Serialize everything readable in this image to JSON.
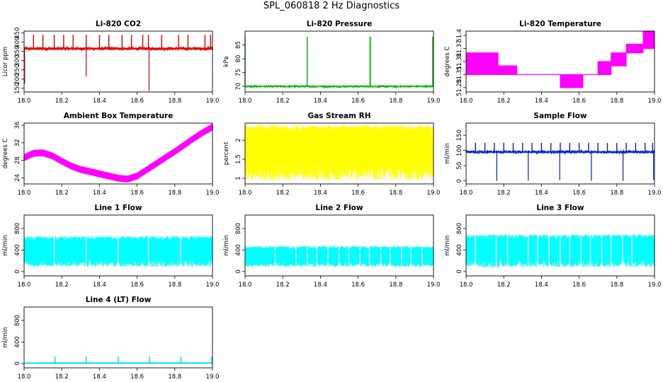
{
  "figure_title": "SPL_060818  2 Hz Diagnostics",
  "chart_data": [
    {
      "type": "line",
      "title": "Li-820 CO2",
      "ylabel": "Licor ppm",
      "color": "#ee0000",
      "xlim": [
        18.0,
        19.0
      ],
      "ylim": [
        130,
        460
      ],
      "xticks": [
        "18.0",
        "18.2",
        "18.4",
        "18.6",
        "18.8",
        "19.0"
      ],
      "yticks": [
        150,
        200,
        250,
        300,
        350,
        400,
        450
      ],
      "pattern": "flat_spiky",
      "baseline": 365,
      "noise": 8,
      "spikes_up": [
        18.05,
        18.1,
        18.16,
        18.21,
        18.26,
        18.33,
        18.4,
        18.45,
        18.52,
        18.57,
        18.63,
        18.66,
        18.73,
        18.82,
        18.87,
        18.96,
        18.99
      ],
      "spike_up_value": 440,
      "spikes_down": [
        {
          "x": 18.003,
          "v": 175
        },
        {
          "x": 18.33,
          "v": 215
        },
        {
          "x": 18.663,
          "v": 135
        }
      ]
    },
    {
      "type": "line",
      "title": "Li-820 Pressure",
      "ylabel": "kPa",
      "color": "#00bb00",
      "xlim": [
        18.0,
        19.0
      ],
      "ylim": [
        68,
        90
      ],
      "xticks": [
        "18.0",
        "18.2",
        "18.4",
        "18.6",
        "18.8",
        "19.0"
      ],
      "yticks": [
        70,
        75,
        80,
        85
      ],
      "pattern": "flat_spiky",
      "baseline": 70,
      "noise": 0.3,
      "spikes_up": [
        18.0,
        18.33,
        18.663,
        18.665,
        18.996
      ],
      "spike_up_value": 88,
      "spikes_down": []
    },
    {
      "type": "step",
      "title": "Li-820 Temperature",
      "ylabel": "degrees C",
      "color": "#ff00ff",
      "xlim": [
        18.0,
        19.0
      ],
      "ylim": [
        51.27,
        51.41
      ],
      "xticks": [
        "18.0",
        "18.2",
        "18.4",
        "18.6",
        "18.8",
        "19.0"
      ],
      "yticks": [
        51.28,
        51.31,
        51.34,
        51.37,
        51.4
      ],
      "segments": [
        {
          "x0": 18.0,
          "x1": 18.17,
          "lo": 51.31,
          "hi": 51.36
        },
        {
          "x0": 18.17,
          "x1": 18.27,
          "lo": 51.31,
          "hi": 51.33
        },
        {
          "x0": 18.27,
          "x1": 18.5,
          "lo": 51.31,
          "hi": 51.31
        },
        {
          "x0": 18.5,
          "x1": 18.62,
          "lo": 51.28,
          "hi": 51.31
        },
        {
          "x0": 18.62,
          "x1": 18.7,
          "lo": 51.31,
          "hi": 51.31
        },
        {
          "x0": 18.7,
          "x1": 18.77,
          "lo": 51.31,
          "hi": 51.34
        },
        {
          "x0": 18.77,
          "x1": 18.85,
          "lo": 51.33,
          "hi": 51.36
        },
        {
          "x0": 18.85,
          "x1": 18.94,
          "lo": 51.36,
          "hi": 51.38
        },
        {
          "x0": 18.94,
          "x1": 19.0,
          "lo": 51.37,
          "hi": 51.41
        }
      ]
    },
    {
      "type": "line",
      "title": "Ambient Box Temperature",
      "ylabel": "degrees C",
      "color": "#ff00ff",
      "xlim": [
        18.0,
        19.0
      ],
      "ylim": [
        22.6,
        36.5
      ],
      "xticks": [
        "18.0",
        "18.2",
        "18.4",
        "18.6",
        "18.8",
        "19.0"
      ],
      "yticks": [
        24,
        28,
        32,
        36
      ],
      "pattern": "curve",
      "band": 0.7,
      "x": [
        18.0,
        18.05,
        18.1,
        18.15,
        18.2,
        18.25,
        18.3,
        18.35,
        18.4,
        18.45,
        18.5,
        18.55,
        18.6,
        18.65,
        18.7,
        18.75,
        18.8,
        18.85,
        18.9,
        18.95,
        19.0
      ],
      "y": [
        28.6,
        29.6,
        29.7,
        29.0,
        27.8,
        26.7,
        25.9,
        25.4,
        24.9,
        24.4,
        23.9,
        23.7,
        24.4,
        25.8,
        27.2,
        28.6,
        30.0,
        31.5,
        33.0,
        34.4,
        35.6
      ]
    },
    {
      "type": "band",
      "title": "Gas Stream RH",
      "ylabel": "percent",
      "color": "#ffff00",
      "xlim": [
        18.0,
        19.0
      ],
      "ylim": [
        0.85,
        2.45
      ],
      "xticks": [
        "18.0",
        "18.2",
        "18.4",
        "18.6",
        "18.8",
        "19.0"
      ],
      "yticks": [
        1.0,
        1.5,
        2.0
      ],
      "center": 1.9,
      "hi": 2.4,
      "lo": 0.95
    },
    {
      "type": "line",
      "title": "Sample Flow",
      "ylabel": "ml/min",
      "color": "#0022dd",
      "xlim": [
        18.0,
        19.0
      ],
      "ylim": [
        -10,
        190
      ],
      "xticks": [
        "18.0",
        "18.2",
        "18.4",
        "18.6",
        "18.8",
        "19.0"
      ],
      "yticks": [
        0,
        50,
        100,
        150
      ],
      "pattern": "flat_spiky",
      "baseline": 95,
      "noise": 4,
      "spikes_up": [
        18.05,
        18.1,
        18.15,
        18.2,
        18.25,
        18.3,
        18.35,
        18.4,
        18.45,
        18.5,
        18.55,
        18.6,
        18.65,
        18.7,
        18.75,
        18.8,
        18.85,
        18.9,
        18.95,
        18.99
      ],
      "spike_up_value": 125,
      "spikes_down": [
        {
          "x": 18.163,
          "v": 0
        },
        {
          "x": 18.33,
          "v": 0
        },
        {
          "x": 18.497,
          "v": 2
        },
        {
          "x": 18.665,
          "v": 0
        },
        {
          "x": 18.833,
          "v": 0
        },
        {
          "x": 18.995,
          "v": 3
        }
      ]
    },
    {
      "type": "band",
      "title": "Line 1 Flow",
      "ylabel": "ml/min",
      "color": "#00ffff",
      "xlim": [
        18.0,
        19.0
      ],
      "ylim": [
        -80,
        1050
      ],
      "xticks": [
        "18.0",
        "18.2",
        "18.4",
        "18.6",
        "18.8",
        "19.0"
      ],
      "yticks": [
        0,
        400,
        800
      ],
      "center": 400,
      "hi": 660,
      "lo": 90,
      "gaps": [
        18.16,
        18.33,
        18.5,
        18.66,
        18.83
      ]
    },
    {
      "type": "band",
      "title": "Line 2 Flow",
      "ylabel": "ml/min",
      "color": "#00ffff",
      "xlim": [
        18.0,
        19.0
      ],
      "ylim": [
        -80,
        1050
      ],
      "xticks": [
        "18.0",
        "18.2",
        "18.4",
        "18.6",
        "18.8",
        "19.0"
      ],
      "yticks": [
        0,
        400,
        800
      ],
      "center": 300,
      "hi": 475,
      "lo": 90,
      "gaps": [
        18.16,
        18.27,
        18.33,
        18.38,
        18.44,
        18.5,
        18.55,
        18.61,
        18.66,
        18.72,
        18.77,
        18.83,
        18.88,
        18.94
      ]
    },
    {
      "type": "band",
      "title": "Line 3 Flow",
      "ylabel": "ml/min",
      "color": "#00ffff",
      "xlim": [
        18.0,
        19.0
      ],
      "ylim": [
        -80,
        1050
      ],
      "xticks": [
        "18.0",
        "18.2",
        "18.4",
        "18.6",
        "18.8",
        "19.0"
      ],
      "yticks": [
        0,
        400,
        800
      ],
      "center": 420,
      "hi": 690,
      "lo": 80,
      "gaps": [
        18.05,
        18.16,
        18.22,
        18.33,
        18.38,
        18.44,
        18.5,
        18.55,
        18.61,
        18.66,
        18.72,
        18.77,
        18.83,
        18.88
      ]
    },
    {
      "type": "line",
      "title": "Line 4 (LT) Flow",
      "ylabel": "ml/min",
      "color": "#00e5e5",
      "xlim": [
        18.0,
        19.0
      ],
      "ylim": [
        -80,
        1050
      ],
      "xticks": [
        "18.0",
        "18.2",
        "18.4",
        "18.6",
        "18.8",
        "19.0"
      ],
      "yticks": [
        0,
        400,
        800
      ],
      "pattern": "flat_spiky",
      "baseline": 12,
      "noise": 4,
      "spikes_up": [
        18.165,
        18.33,
        18.5,
        18.665,
        18.833,
        18.996
      ],
      "spike_up_value": 130,
      "spikes_down": []
    }
  ]
}
